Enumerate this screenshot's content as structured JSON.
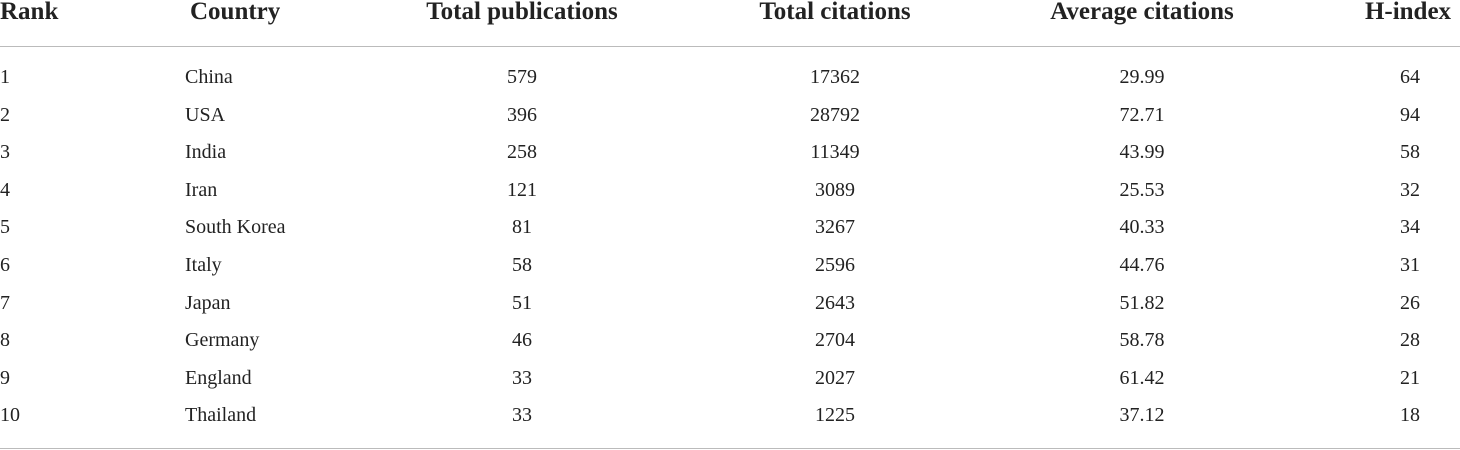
{
  "table": {
    "header": [
      "Rank",
      "Country",
      "Total publications",
      "Total citations",
      "Average citations",
      "H-index"
    ],
    "rows": [
      [
        1,
        "China",
        579,
        17362,
        29.99,
        64
      ],
      [
        2,
        "USA",
        396,
        28792,
        72.71,
        94
      ],
      [
        3,
        "India",
        258,
        11349,
        43.99,
        58
      ],
      [
        4,
        "Iran",
        121,
        3089,
        25.53,
        32
      ],
      [
        5,
        "South Korea",
        81,
        3267,
        40.33,
        34
      ],
      [
        6,
        "Italy",
        58,
        2596,
        44.76,
        31
      ],
      [
        7,
        "Japan",
        51,
        2643,
        51.82,
        26
      ],
      [
        8,
        "Germany",
        46,
        2704,
        58.78,
        28
      ],
      [
        9,
        "England",
        33,
        2027,
        61.42,
        21
      ],
      [
        10,
        "Thailand",
        33,
        1225,
        37.12,
        18
      ]
    ]
  }
}
